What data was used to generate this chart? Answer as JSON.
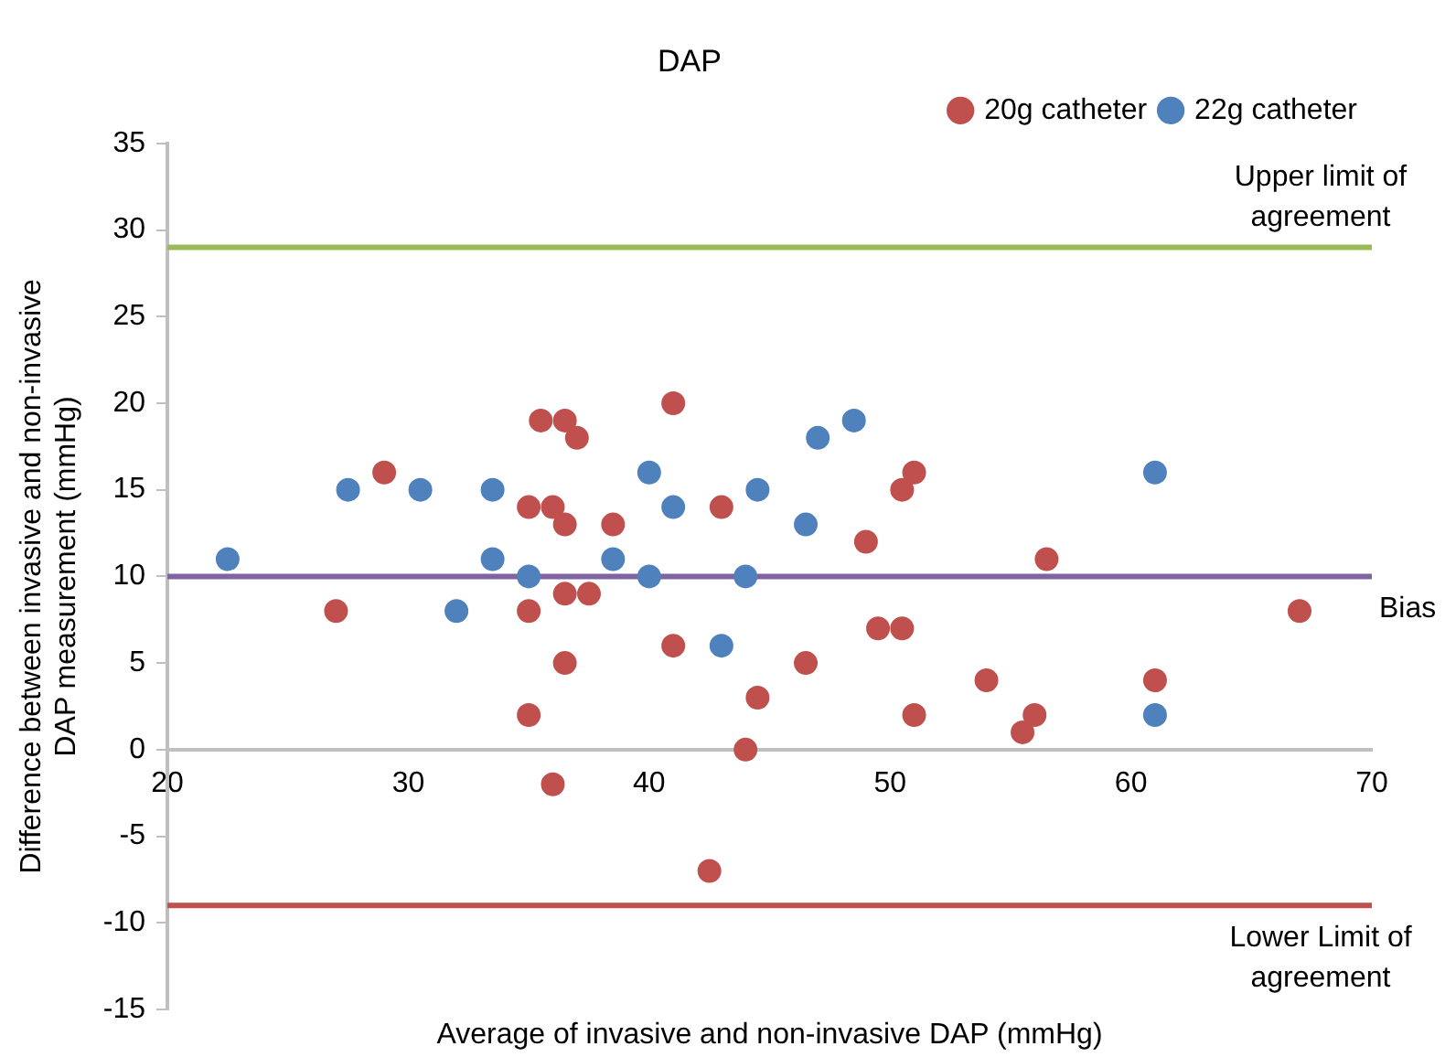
{
  "chart_data": {
    "type": "scatter",
    "title": "DAP",
    "xlabel": "Average of invasive and non-invasive DAP (mmHg)",
    "ylabel": "Difference between invasive and non-invasive DAP measurement (mmHg)",
    "xlim": [
      20,
      70
    ],
    "xticks": [
      20,
      30,
      40,
      50,
      60,
      70
    ],
    "ylim": [
      -15,
      35
    ],
    "yticks": [
      -15,
      -10,
      -5,
      0,
      5,
      10,
      15,
      20,
      25,
      30,
      35
    ],
    "grid": false,
    "legend": "top right",
    "marker": "circle",
    "series": [
      {
        "name": "20g catheter",
        "color": "#c0504d",
        "x": [
          27,
          29,
          35,
          36,
          36.5,
          35.5,
          36.5,
          37,
          38.5,
          35,
          36.5,
          37.5,
          36.5,
          35,
          36,
          41,
          41,
          43,
          42.5,
          44,
          44.5,
          46.5,
          49,
          49.5,
          50.5,
          50.5,
          51,
          51,
          54,
          55.5,
          56,
          56.5,
          61,
          67
        ],
        "values": [
          8,
          16,
          14,
          14,
          13,
          19,
          19,
          18,
          13,
          8,
          9,
          9,
          5,
          2,
          -2,
          20,
          6,
          14,
          -7,
          0,
          3,
          5,
          12,
          7,
          7,
          15,
          16,
          2,
          4,
          1,
          2,
          11,
          4,
          8
        ]
      },
      {
        "name": "22g catheter",
        "color": "#4f81bd",
        "x": [
          22.5,
          27.5,
          30.5,
          32,
          33.5,
          33.5,
          35,
          38.5,
          40,
          40,
          41,
          43,
          44,
          44.5,
          46.5,
          47,
          48.5,
          61,
          61
        ],
        "values": [
          11,
          15,
          15,
          8,
          15,
          11,
          10,
          11,
          16,
          10,
          14,
          6,
          10,
          15,
          13,
          18,
          19,
          16,
          2
        ]
      }
    ],
    "ref_lines": [
      {
        "axis": "y",
        "value": 29,
        "label": "Upper limit of agreement",
        "color": "#9bbb59"
      },
      {
        "axis": "y",
        "value": 10,
        "label": "Bias",
        "color": "#8064a2"
      },
      {
        "axis": "y",
        "value": -9,
        "label": "Lower Limit of agreement",
        "color": "#c0504d"
      }
    ]
  }
}
